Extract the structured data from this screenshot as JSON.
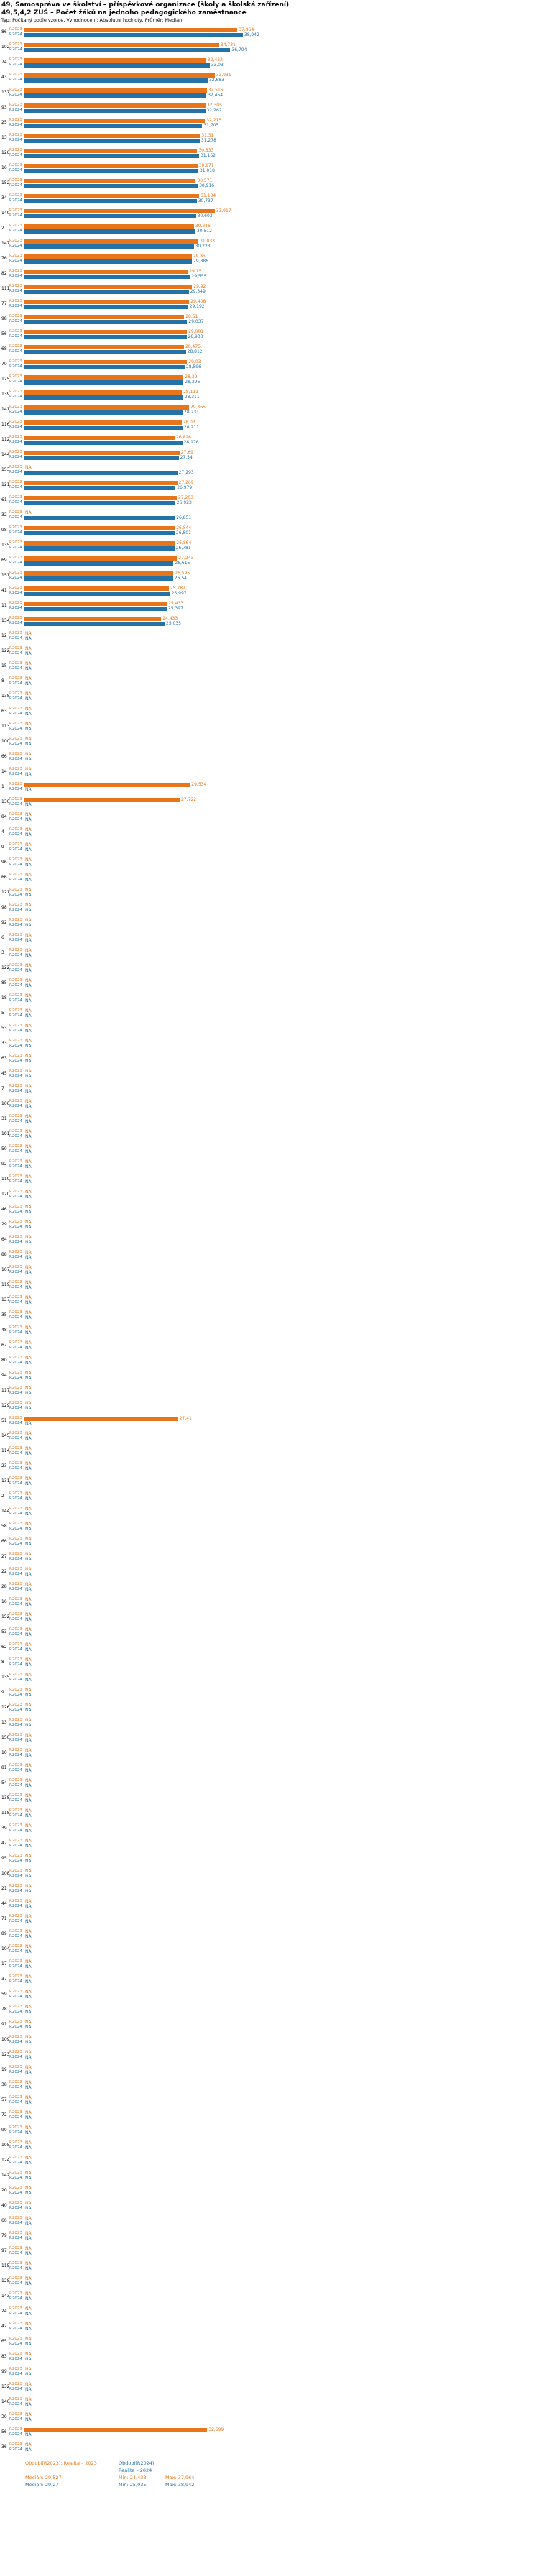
{
  "header": {
    "title_line1": "49, Samospráva ve školství – příspěvkové organizace (školy a školská zařízení)",
    "title_line2": "49,5,4,2 ZUŠ – Počet žáků na jednoho pedagogického zaměstnance",
    "meta": "Typ: Počítaný podle vzorce, Vyhodnocení: Absolutní hodnoty, Průměr: Medián"
  },
  "na_label": "NA",
  "colors": {
    "r2023": "#e8751a",
    "r2024": "#2372a8",
    "reference_line": "#c9c9c9"
  },
  "series": {
    "r2023": {
      "tick": "R2023",
      "legend": "Období(R2023): Realita – 2023",
      "median": "Medián: 29,527",
      "min": "Min: 24,433",
      "max": "Max: 37,964"
    },
    "r2024": {
      "tick": "R2024",
      "legend": "Období(R2024): Realita – 2024",
      "median": "Medián: 29,27",
      "min": "Min: 25,035",
      "max": "Max: 38,942"
    }
  },
  "chart_data": {
    "type": "bar",
    "orientation": "horizontal",
    "title": "49,5,4,2 ZUŠ – Počet žáků na jednoho pedagogického zaměstnance",
    "xlim": [
      0,
      40
    ],
    "grid": false,
    "reference_line_value": 25.4,
    "series_names": [
      "Realita – 2023",
      "Realita – 2024"
    ],
    "stats": {
      "r2023": {
        "median": 29.527,
        "min": 24.433,
        "max": 37.964
      },
      "r2024": {
        "median": 29.27,
        "min": 25.035,
        "max": 38.942
      }
    },
    "rows": [
      {
        "id": "86",
        "r2023": "37,964",
        "r2024": "38,942"
      },
      {
        "id": "102",
        "r2023": "34,731",
        "r2024": "36,704"
      },
      {
        "id": "74",
        "r2023": "32,422",
        "r2024": "33,03"
      },
      {
        "id": "43",
        "r2023": "33,931",
        "r2024": "32,683"
      },
      {
        "id": "137",
        "r2023": "32,515",
        "r2024": "32,454"
      },
      {
        "id": "93",
        "r2023": "32,305",
        "r2024": "32,262"
      },
      {
        "id": "25",
        "r2023": "32,215",
        "r2024": "31,705"
      },
      {
        "id": "13",
        "r2023": "31,31",
        "r2024": "31,278"
      },
      {
        "id": "126",
        "r2023": "30,833",
        "r2024": "31,162"
      },
      {
        "id": "16",
        "r2023": "30,871",
        "r2024": "31,018"
      },
      {
        "id": "152",
        "r2023": "30,571",
        "r2024": "30,916"
      },
      {
        "id": "34",
        "r2023": "31,184",
        "r2024": "30,737"
      },
      {
        "id": "140",
        "r2023": "33,917",
        "r2024": "30,603"
      },
      {
        "id": "2",
        "r2023": "30,246",
        "r2024": "30,512"
      },
      {
        "id": "147",
        "r2023": "31,033",
        "r2024": "30,223"
      },
      {
        "id": "76",
        "r2023": "29,85",
        "r2024": "29,886"
      },
      {
        "id": "82",
        "r2023": "29,15",
        "r2024": "29,555"
      },
      {
        "id": "111",
        "r2023": "29,92",
        "r2024": "29,349"
      },
      {
        "id": "77",
        "r2023": "29,408",
        "r2024": "29,192"
      },
      {
        "id": "98",
        "r2023": "28,51",
        "r2024": "29,037"
      },
      {
        "id": "56",
        "r2023": "29,001",
        "r2024": "28,933"
      },
      {
        "id": "68",
        "r2023": "28,475",
        "r2024": "28,812"
      },
      {
        "id": "70",
        "r2023": "29,03",
        "r2024": "28,596"
      },
      {
        "id": "125",
        "r2023": "28,39",
        "r2024": "28,396"
      },
      {
        "id": "139",
        "r2023": "28,111",
        "r2024": "28,311"
      },
      {
        "id": "141",
        "r2023": "29,365",
        "r2024": "28,231"
      },
      {
        "id": "116",
        "r2023": "28,03",
        "r2024": "28,211"
      },
      {
        "id": "112",
        "r2023": "26,826",
        "r2024": "28,176"
      },
      {
        "id": "144",
        "r2023": "27,69",
        "r2024": "27,54"
      },
      {
        "id": "153",
        "r2023": "NA",
        "r2024": "27,293"
      },
      {
        "id": "121",
        "r2023": "27,269",
        "r2024": "26,979"
      },
      {
        "id": "61",
        "r2023": "27,203",
        "r2024": "26,923"
      },
      {
        "id": "32",
        "r2023": "NA",
        "r2024": "26,851"
      },
      {
        "id": "98",
        "r2023": "26,844",
        "r2024": "26,801"
      },
      {
        "id": "135",
        "r2023": "26,864",
        "r2024": "26,781"
      },
      {
        "id": "69",
        "r2023": "27,243",
        "r2024": "26,615"
      },
      {
        "id": "151",
        "r2023": "26,595",
        "r2024": "26,54"
      },
      {
        "id": "41",
        "r2023": "25,787",
        "r2024": "25,997"
      },
      {
        "id": "11",
        "r2023": "25,433",
        "r2024": "25,397"
      },
      {
        "id": "134",
        "r2023": "24,433",
        "r2024": "25,035"
      },
      {
        "id": "12",
        "r2023": "NA",
        "r2024": "NA"
      },
      {
        "id": "122",
        "r2023": "NA",
        "r2024": "NA"
      },
      {
        "id": "15",
        "r2023": "NA",
        "r2024": "NA"
      },
      {
        "id": "8",
        "r2023": "NA",
        "r2024": "NA"
      },
      {
        "id": "138",
        "r2023": "NA",
        "r2024": "NA"
      },
      {
        "id": "63",
        "r2023": "NA",
        "r2024": "NA"
      },
      {
        "id": "113",
        "r2023": "NA",
        "r2024": "NA"
      },
      {
        "id": "100",
        "r2023": "NA",
        "r2024": "NA"
      },
      {
        "id": "66",
        "r2023": "NA",
        "r2024": "NA"
      },
      {
        "id": "14",
        "r2023": "NA",
        "r2024": "NA"
      },
      {
        "id": "1",
        "r2023": "29,534",
        "r2024": "NA"
      },
      {
        "id": "130",
        "r2023": "27,722",
        "r2024": "NA"
      },
      {
        "id": "84",
        "r2023": "NA",
        "r2024": "NA"
      },
      {
        "id": "4",
        "r2023": "NA",
        "r2024": "NA"
      },
      {
        "id": "9",
        "r2023": "NA",
        "r2024": "NA"
      },
      {
        "id": "96",
        "r2023": "NA",
        "r2024": "NA"
      },
      {
        "id": "66",
        "r2023": "NA",
        "r2024": "NA"
      },
      {
        "id": "121",
        "r2023": "NA",
        "r2024": "NA"
      },
      {
        "id": "98",
        "r2023": "NA",
        "r2024": "NA"
      },
      {
        "id": "92",
        "r2023": "NA",
        "r2024": "NA"
      },
      {
        "id": "6",
        "r2023": "NA",
        "r2024": "NA"
      },
      {
        "id": "3",
        "r2023": "NA",
        "r2024": "NA"
      },
      {
        "id": "122",
        "r2023": "NA",
        "r2024": "NA"
      },
      {
        "id": "85",
        "r2023": "NA",
        "r2024": "NA"
      },
      {
        "id": "18",
        "r2023": "NA",
        "r2024": "NA"
      },
      {
        "id": "5",
        "r2023": "NA",
        "r2024": "NA"
      },
      {
        "id": "53",
        "r2023": "NA",
        "r2024": "NA"
      },
      {
        "id": "33",
        "r2023": "NA",
        "r2024": "NA"
      },
      {
        "id": "63",
        "r2023": "NA",
        "r2024": "NA"
      },
      {
        "id": "45",
        "r2023": "NA",
        "r2024": "NA"
      },
      {
        "id": "7",
        "r2023": "NA",
        "r2024": "NA"
      },
      {
        "id": "106",
        "r2023": "NA",
        "r2024": "NA"
      },
      {
        "id": "31",
        "r2023": "NA",
        "r2024": "NA"
      },
      {
        "id": "101",
        "r2023": "NA",
        "r2024": "NA"
      },
      {
        "id": "50",
        "r2023": "NA",
        "r2024": "NA"
      },
      {
        "id": "92",
        "r2023": "NA",
        "r2024": "NA"
      },
      {
        "id": "110",
        "r2023": "NA",
        "r2024": "NA"
      },
      {
        "id": "120",
        "r2023": "NA",
        "r2024": "NA"
      },
      {
        "id": "46",
        "r2023": "NA",
        "r2024": "NA"
      },
      {
        "id": "29",
        "r2023": "NA",
        "r2024": "NA"
      },
      {
        "id": "64",
        "r2023": "NA",
        "r2024": "NA"
      },
      {
        "id": "88",
        "r2023": "NA",
        "r2024": "NA"
      },
      {
        "id": "107",
        "r2023": "NA",
        "r2024": "NA"
      },
      {
        "id": "119",
        "r2023": "NA",
        "r2024": "NA"
      },
      {
        "id": "127",
        "r2023": "NA",
        "r2024": "NA"
      },
      {
        "id": "35",
        "r2023": "NA",
        "r2024": "NA"
      },
      {
        "id": "48",
        "r2023": "NA",
        "r2024": "NA"
      },
      {
        "id": "67",
        "r2023": "NA",
        "r2024": "NA"
      },
      {
        "id": "80",
        "r2023": "NA",
        "r2024": "NA"
      },
      {
        "id": "94",
        "r2023": "NA",
        "r2024": "NA"
      },
      {
        "id": "117",
        "r2023": "NA",
        "r2024": "NA"
      },
      {
        "id": "129",
        "r2023": "NA",
        "r2024": "NA"
      },
      {
        "id": "51",
        "r2023": "27,41",
        "r2024": "NA"
      },
      {
        "id": "145",
        "r2023": "NA",
        "r2024": "NA"
      },
      {
        "id": "114",
        "r2023": "NA",
        "r2024": "NA"
      },
      {
        "id": "23",
        "r2023": "NA",
        "r2024": "NA"
      },
      {
        "id": "131",
        "r2023": "NA",
        "r2024": "NA"
      },
      {
        "id": "2",
        "r2023": "NA",
        "r2024": "NA"
      },
      {
        "id": "144",
        "r2023": "NA",
        "r2024": "NA"
      },
      {
        "id": "58",
        "r2023": "NA",
        "r2024": "NA"
      },
      {
        "id": "66",
        "r2023": "NA",
        "r2024": "NA"
      },
      {
        "id": "27",
        "r2023": "NA",
        "r2024": "NA"
      },
      {
        "id": "22",
        "r2023": "NA",
        "r2024": "NA"
      },
      {
        "id": "28",
        "r2023": "NA",
        "r2024": "NA"
      },
      {
        "id": "16",
        "r2023": "NA",
        "r2024": "NA"
      },
      {
        "id": "152",
        "r2023": "NA",
        "r2024": "NA"
      },
      {
        "id": "53",
        "r2023": "NA",
        "r2024": "NA"
      },
      {
        "id": "62",
        "r2023": "NA",
        "r2024": "NA"
      },
      {
        "id": "8",
        "r2023": "NA",
        "r2024": "NA"
      },
      {
        "id": "135",
        "r2023": "NA",
        "r2024": "NA"
      },
      {
        "id": "9",
        "r2023": "NA",
        "r2024": "NA"
      },
      {
        "id": "126",
        "r2023": "NA",
        "r2024": "NA"
      },
      {
        "id": "13",
        "r2023": "NA",
        "r2024": "NA"
      },
      {
        "id": "150",
        "r2023": "NA",
        "r2024": "NA"
      },
      {
        "id": "10",
        "r2023": "NA",
        "r2024": "NA"
      },
      {
        "id": "81",
        "r2023": "NA",
        "r2024": "NA"
      },
      {
        "id": "54",
        "r2023": "NA",
        "r2024": "NA"
      },
      {
        "id": "138",
        "r2023": "NA",
        "r2024": "NA"
      },
      {
        "id": "118",
        "r2023": "NA",
        "r2024": "NA"
      },
      {
        "id": "39",
        "r2023": "NA",
        "r2024": "NA"
      },
      {
        "id": "47",
        "r2023": "NA",
        "r2024": "NA"
      },
      {
        "id": "95",
        "r2023": "NA",
        "r2024": "NA"
      },
      {
        "id": "108",
        "r2023": "NA",
        "r2024": "NA"
      },
      {
        "id": "21",
        "r2023": "NA",
        "r2024": "NA"
      },
      {
        "id": "44",
        "r2023": "NA",
        "r2024": "NA"
      },
      {
        "id": "71",
        "r2023": "NA",
        "r2024": "NA"
      },
      {
        "id": "89",
        "r2023": "NA",
        "r2024": "NA"
      },
      {
        "id": "104",
        "r2023": "NA",
        "r2024": "NA"
      },
      {
        "id": "17",
        "r2023": "NA",
        "r2024": "NA"
      },
      {
        "id": "37",
        "r2023": "NA",
        "r2024": "NA"
      },
      {
        "id": "59",
        "r2023": "NA",
        "r2024": "NA"
      },
      {
        "id": "78",
        "r2023": "NA",
        "r2024": "NA"
      },
      {
        "id": "91",
        "r2023": "NA",
        "r2024": "NA"
      },
      {
        "id": "109",
        "r2023": "NA",
        "r2024": "NA"
      },
      {
        "id": "123",
        "r2023": "NA",
        "r2024": "NA"
      },
      {
        "id": "19",
        "r2023": "NA",
        "r2024": "NA"
      },
      {
        "id": "38",
        "r2023": "NA",
        "r2024": "NA"
      },
      {
        "id": "57",
        "r2023": "NA",
        "r2024": "NA"
      },
      {
        "id": "72",
        "r2023": "NA",
        "r2024": "NA"
      },
      {
        "id": "90",
        "r2023": "NA",
        "r2024": "NA"
      },
      {
        "id": "105",
        "r2023": "NA",
        "r2024": "NA"
      },
      {
        "id": "124",
        "r2023": "NA",
        "r2024": "NA"
      },
      {
        "id": "142",
        "r2023": "NA",
        "r2024": "NA"
      },
      {
        "id": "20",
        "r2023": "NA",
        "r2024": "NA"
      },
      {
        "id": "40",
        "r2023": "NA",
        "r2024": "NA"
      },
      {
        "id": "60",
        "r2023": "NA",
        "r2024": "NA"
      },
      {
        "id": "79",
        "r2023": "NA",
        "r2024": "NA"
      },
      {
        "id": "97",
        "r2023": "NA",
        "r2024": "NA"
      },
      {
        "id": "115",
        "r2023": "NA",
        "r2024": "NA"
      },
      {
        "id": "128",
        "r2023": "NA",
        "r2024": "NA"
      },
      {
        "id": "143",
        "r2023": "NA",
        "r2024": "NA"
      },
      {
        "id": "24",
        "r2023": "NA",
        "r2024": "NA"
      },
      {
        "id": "42",
        "r2023": "NA",
        "r2024": "NA"
      },
      {
        "id": "65",
        "r2023": "NA",
        "r2024": "NA"
      },
      {
        "id": "83",
        "r2023": "NA",
        "r2024": "NA"
      },
      {
        "id": "99",
        "r2023": "NA",
        "r2024": "NA"
      },
      {
        "id": "132",
        "r2023": "NA",
        "r2024": "NA"
      },
      {
        "id": "146",
        "r2023": "NA",
        "r2024": "NA"
      },
      {
        "id": "30",
        "r2023": "NA",
        "r2024": "NA"
      },
      {
        "id": "56",
        "r2023": "32,599",
        "r2024": "NA"
      },
      {
        "id": "36",
        "r2023": "NA",
        "r2024": "NA"
      }
    ]
  }
}
